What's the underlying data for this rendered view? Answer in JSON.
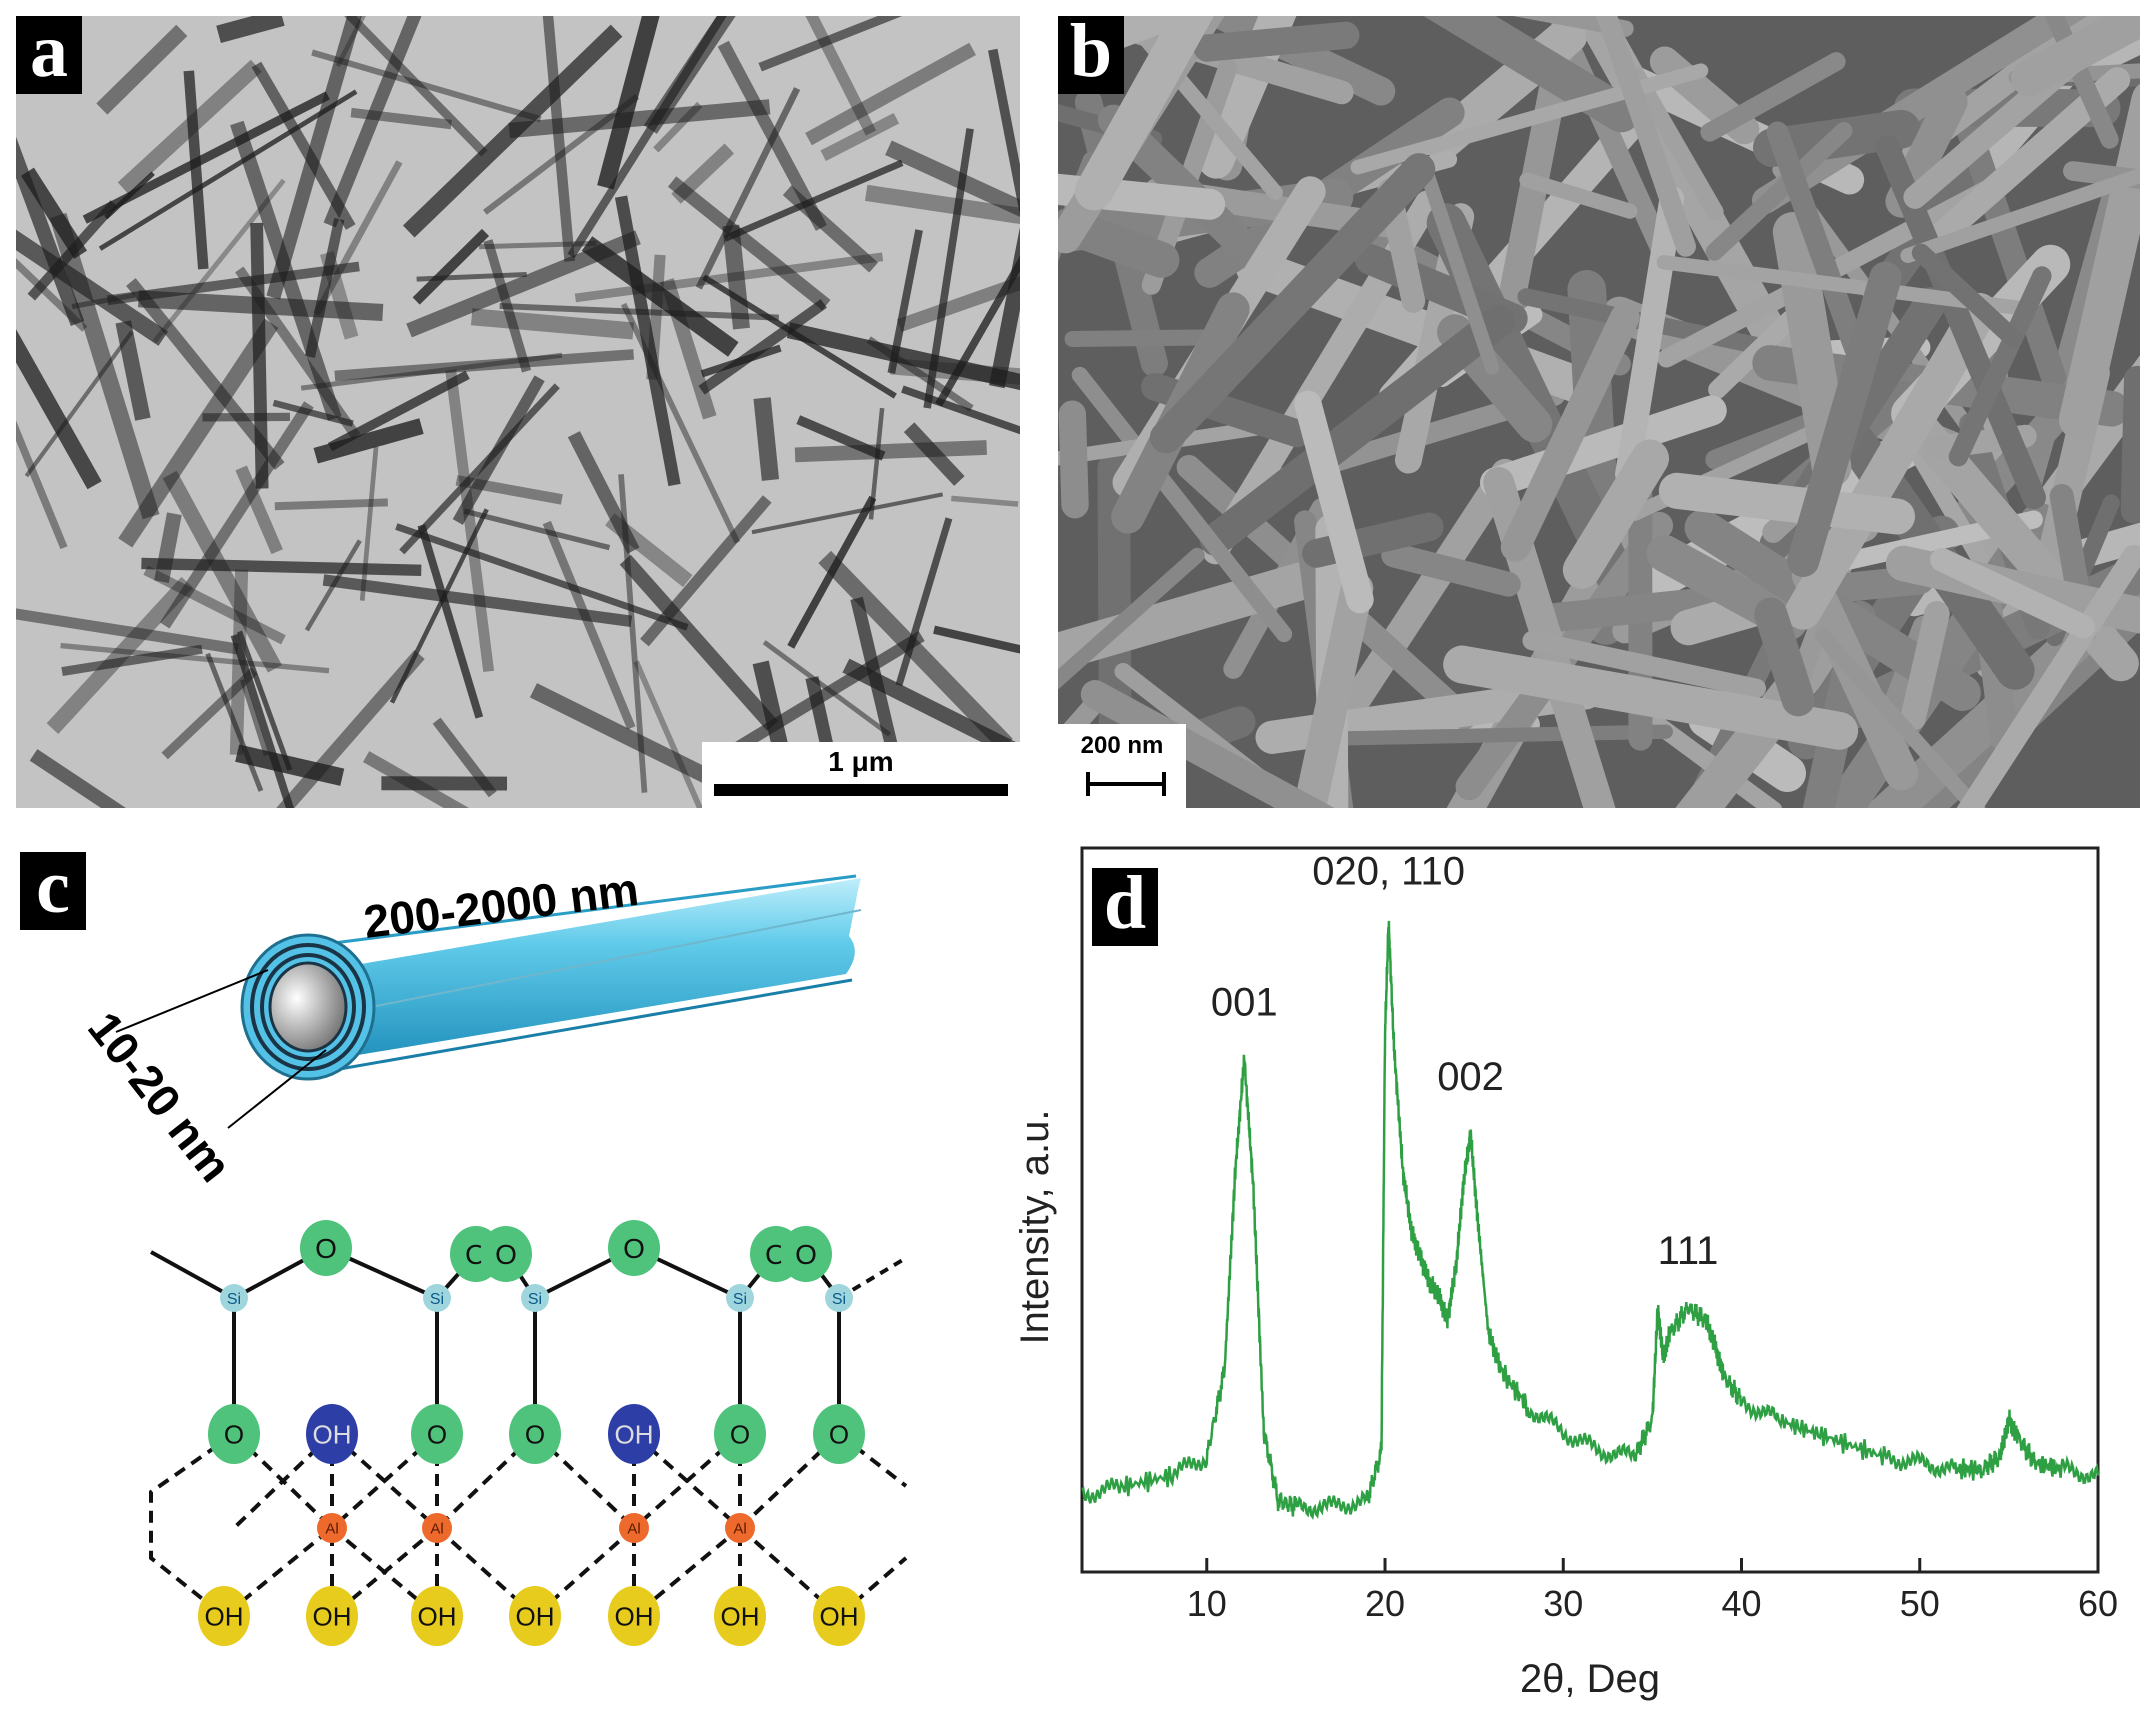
{
  "panels": {
    "a": {
      "letter": "a",
      "scale_bar_label": "1 μm"
    },
    "b": {
      "letter": "b",
      "scale_bar_label": "200 nm"
    },
    "c": {
      "letter": "c",
      "tube_length_label": "200-2000 nm",
      "tube_diameter_label": "10-20 nm",
      "colors": {
        "tube": "#4bbde0",
        "oxygen": "#4fc37c",
        "silicon": "#9fd6dd",
        "aluminium": "#ee6a2c",
        "hydroxyl_inner": "#2d3fa6",
        "hydroxyl_outer": "#e7cc1e"
      },
      "atom_labels": {
        "top_oxygens": [
          "O",
          "O",
          "O",
          "O",
          "O",
          "O",
          "O"
        ],
        "silicons": [
          "Si",
          "Si",
          "Si",
          "Si",
          "Si"
        ],
        "middle_row": [
          "O",
          "OH",
          "O",
          "O",
          "OH",
          "O",
          "O"
        ],
        "aluminiums": [
          "Al",
          "Al",
          "Al",
          "Al"
        ],
        "bottom_row": [
          "OH",
          "OH",
          "OH",
          "OH",
          "OH",
          "OH",
          "OH"
        ]
      }
    },
    "d": {
      "letter": "d"
    }
  },
  "chart_data": {
    "type": "line",
    "xlabel": "2θ, Deg",
    "ylabel": "Intensity, a.u.",
    "xlim": [
      3,
      60
    ],
    "ylim": [
      0,
      100
    ],
    "xticks": [
      10,
      20,
      30,
      40,
      50,
      60
    ],
    "y_tick_labels": false,
    "line_color": "#2ea043",
    "series": [
      {
        "x": [
          3,
          5,
          8,
          10,
          11,
          11.6,
          12.1,
          12.6,
          13.2,
          14,
          15,
          17,
          19,
          19.8,
          20.0,
          20.2,
          20.5,
          21,
          21.5,
          22,
          22.5,
          23,
          23.5,
          24,
          24.4,
          24.8,
          25.2,
          25.8,
          26.5,
          28,
          30,
          32,
          34,
          35,
          35.3,
          35.6,
          36,
          37,
          38,
          38.5,
          39,
          40,
          42,
          45,
          48,
          50,
          52,
          53.5,
          54.5,
          55,
          55.5,
          56.5,
          58,
          60
        ],
        "y": [
          8,
          9,
          11,
          14,
          28,
          60,
          78,
          58,
          18,
          7,
          6,
          6,
          7,
          15,
          82,
          100,
          80,
          60,
          50,
          46,
          42,
          40,
          36,
          45,
          58,
          66,
          52,
          34,
          28,
          22,
          18,
          15,
          14,
          20,
          38,
          30,
          34,
          38,
          36,
          32,
          27,
          23,
          20,
          17,
          14,
          13,
          12,
          12,
          14,
          20,
          17,
          13,
          12,
          11
        ]
      }
    ],
    "annotations": [
      {
        "label": "001",
        "x": 12.1,
        "y": 85
      },
      {
        "label": "020, 110",
        "x": 20.2,
        "y": 106
      },
      {
        "label": "002",
        "x": 24.8,
        "y": 73
      },
      {
        "label": "111",
        "x": 37,
        "y": 45
      }
    ]
  }
}
